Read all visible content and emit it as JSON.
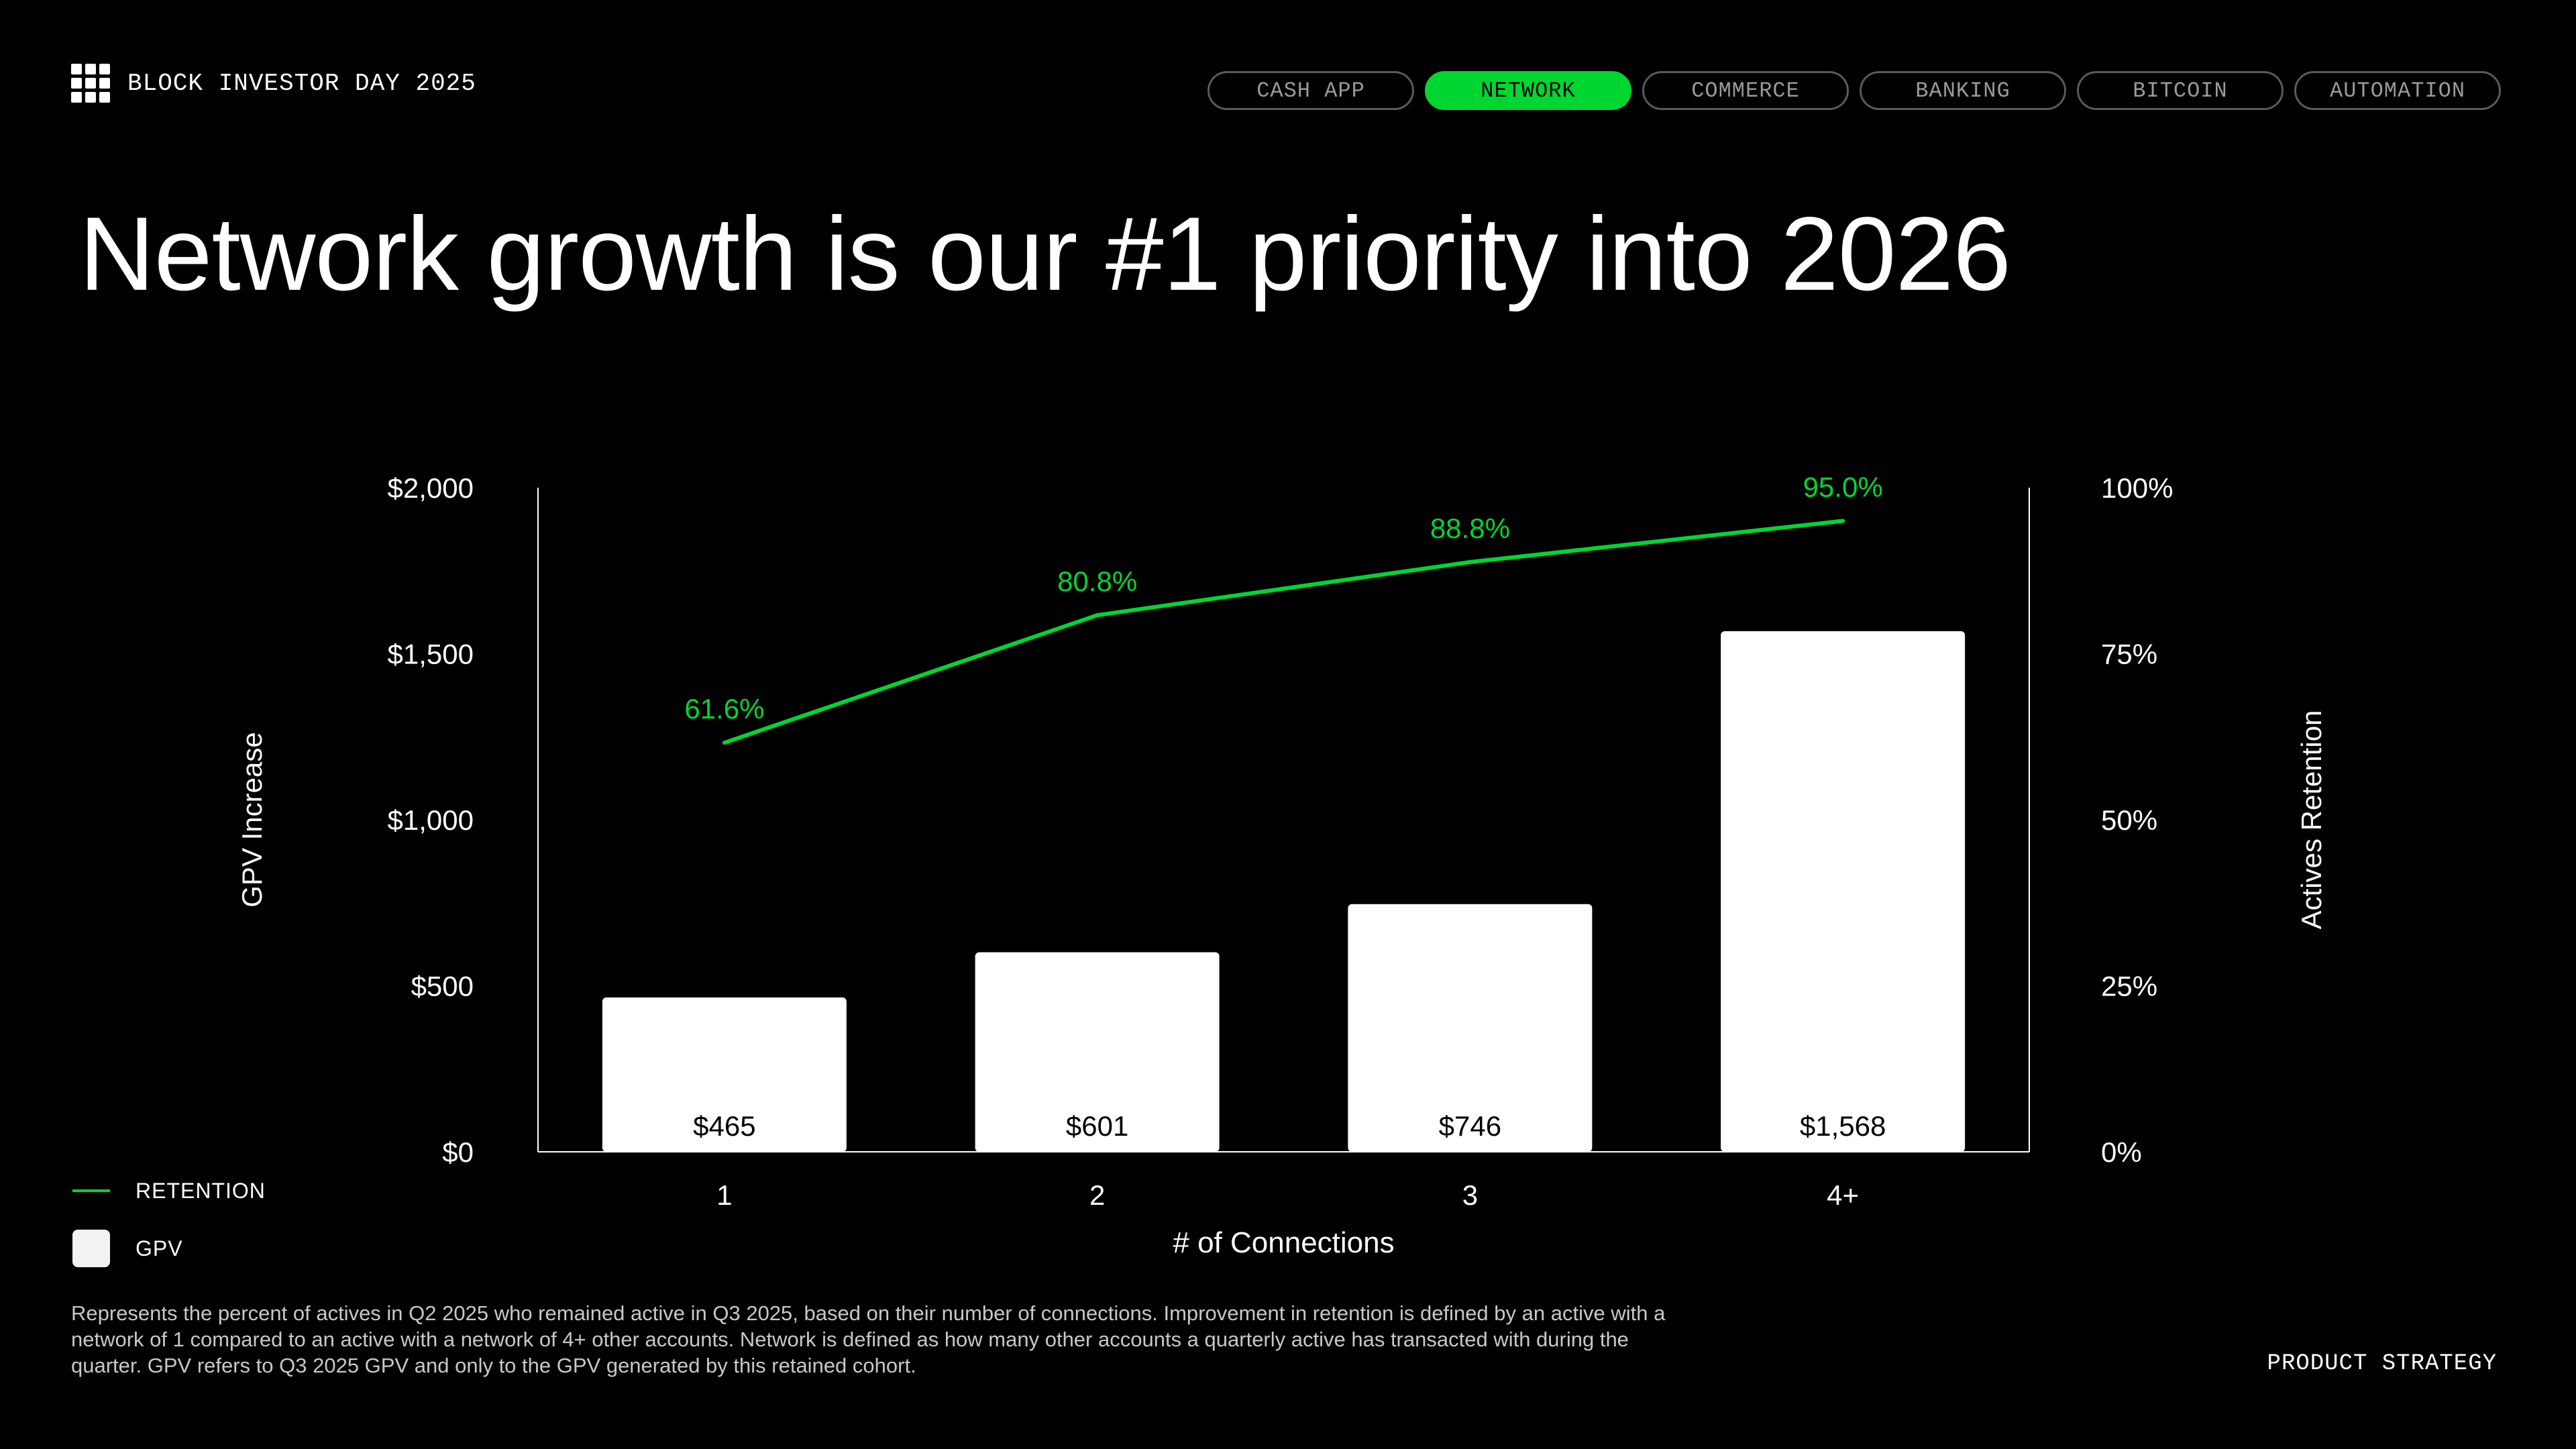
{
  "brand": {
    "title": "BLOCK INVESTOR DAY 2025",
    "icon": "grid-icon"
  },
  "nav": {
    "tabs": [
      {
        "label": "CASH APP",
        "active": false
      },
      {
        "label": "NETWORK",
        "active": true
      },
      {
        "label": "COMMERCE",
        "active": false
      },
      {
        "label": "BANKING",
        "active": false
      },
      {
        "label": "BITCOIN",
        "active": false
      },
      {
        "label": "AUTOMATION",
        "active": false
      }
    ]
  },
  "page_title": "Network growth is our #1 priority into 2026",
  "colors": {
    "accent": "#00d632",
    "bar": "#ffffff",
    "background": "#000000"
  },
  "chart_data": {
    "type": "bar",
    "categories": [
      "1",
      "2",
      "3",
      "4+"
    ],
    "xlabel": "# of Connections",
    "ylabel": "GPV Increase",
    "y2label": "Actives Retention",
    "ylim": [
      0,
      2000
    ],
    "y2lim": [
      0,
      100
    ],
    "yticks": [
      "$0",
      "$500",
      "$1,000",
      "$1,500",
      "$2,000"
    ],
    "y2ticks": [
      "0%",
      "25%",
      "50%",
      "75%",
      "100%"
    ],
    "series": [
      {
        "name": "GPV",
        "type": "bar",
        "axis": "left",
        "values": [
          465,
          601,
          746,
          1568
        ],
        "labels": [
          "$465",
          "$601",
          "$746",
          "$1,568"
        ]
      },
      {
        "name": "RETENTION",
        "type": "line",
        "axis": "right",
        "values": [
          61.6,
          80.8,
          88.8,
          95.0
        ],
        "labels": [
          "61.6%",
          "80.8%",
          "88.8%",
          "95.0%"
        ]
      }
    ],
    "legend_position": "bottom-left",
    "grid": false
  },
  "legend": {
    "retention_label": "RETENTION",
    "gpv_label": "GPV"
  },
  "footnote": "Represents the percent of actives in Q2 2025 who remained active in Q3 2025, based on their number of connections. Improvement in retention is defined by an active with a network of 1 compared to an active with a network of 4+ other accounts. Network is defined as how many other accounts a quarterly active has transacted with during the quarter. GPV refers to Q3 2025 GPV and only to the GPV generated by this retained cohort.",
  "section_label": "PRODUCT STRATEGY"
}
